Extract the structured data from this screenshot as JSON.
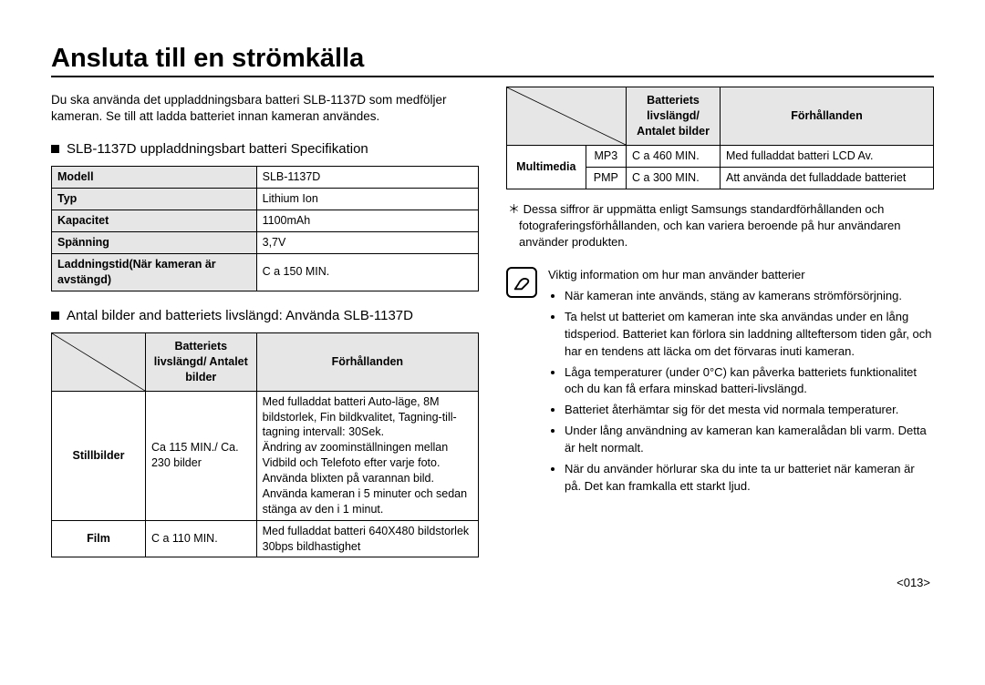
{
  "title": "Ansluta till en strömkälla",
  "intro": "Du ska använda det uppladdningsbara batteri SLB-1137D som medföljer kameran. Se till att ladda batteriet innan kameran användes.",
  "spec_heading": "SLB-1137D uppladdningsbart batteri Specifikation",
  "spec_rows": [
    {
      "label": "Modell",
      "value": "SLB-1137D"
    },
    {
      "label": "Typ",
      "value": "Lithium Ion"
    },
    {
      "label": "Kapacitet",
      "value": "1100mAh"
    },
    {
      "label": "Spänning",
      "value": "3,7V"
    },
    {
      "label": "Laddningstid(När kameran är avstängd)",
      "value": "C a 150 MIN."
    }
  ],
  "life_heading": "Antal bilder and batteriets livslängd: Använda SLB-1137D",
  "life_header": {
    "col2": "Batteriets livslängd/ Antalet bilder",
    "col3": "Förhållanden"
  },
  "life_rows": [
    {
      "label": "Stillbilder",
      "col2": "Ca 115 MIN./ Ca. 230 bilder",
      "col3": "Med fulladdat batteri Auto-läge, 8M bildstorlek, Fin bildkvalitet, Tagning-till-tagning intervall: 30Sek.\nÄndring av zoominställningen mellan Vidbild och Telefoto efter varje foto.\nAnvända blixten på varannan bild.\nAnvända kameran i 5 minuter och sedan stänga av den i 1 minut."
    },
    {
      "label": "Film",
      "col2": "C a 110 MIN.",
      "col3": "Med fulladdat batteri 640X480 bildstorlek 30bps bildhastighet"
    }
  ],
  "mm_header": {
    "col2": "Batteriets livslängd/ Antalet bilder",
    "col3": "Förhållanden"
  },
  "mm_rowlabel": "Multimedia",
  "mm_rows": [
    {
      "sub": "MP3",
      "col2": "C a 460 MIN.",
      "col3": "Med fulladdat batteri LCD Av."
    },
    {
      "sub": "PMP",
      "col2": "C a 300 MIN.",
      "col3": "Att använda det fulladdade batteriet"
    }
  ],
  "asterisk_note": "Dessa siffror är uppmätta enligt Samsungs standardförhållanden och fotograferingsförhållanden, och kan variera beroende på hur användaren använder produkten.",
  "info_heading": "Viktig information om hur man använder batterier",
  "info_bullets": [
    "När kameran inte används, stäng av kamerans strömförsörjning.",
    "Ta helst ut batteriet om kameran inte ska användas under en lång tidsperiod. Batteriet kan förlora sin laddning allteftersom tiden går, och har en tendens att läcka om det förvaras inuti kameran.",
    "Låga temperaturer (under 0°C) kan påverka batteriets funktionalitet och du kan få erfara minskad batteri-livslängd.",
    "Batteriet återhämtar sig för det mesta vid normala temperaturer.",
    "Under lång användning av kameran kan kameralådan bli varm. Detta är helt normalt.",
    "När du använder hörlurar ska du inte ta ur batteriet när kameran är på. Det kan framkalla ett starkt ljud."
  ],
  "page_number": "<013>",
  "colors": {
    "header_bg": "#e6e6e6",
    "border": "#000000",
    "text": "#000000",
    "bg": "#ffffff"
  }
}
